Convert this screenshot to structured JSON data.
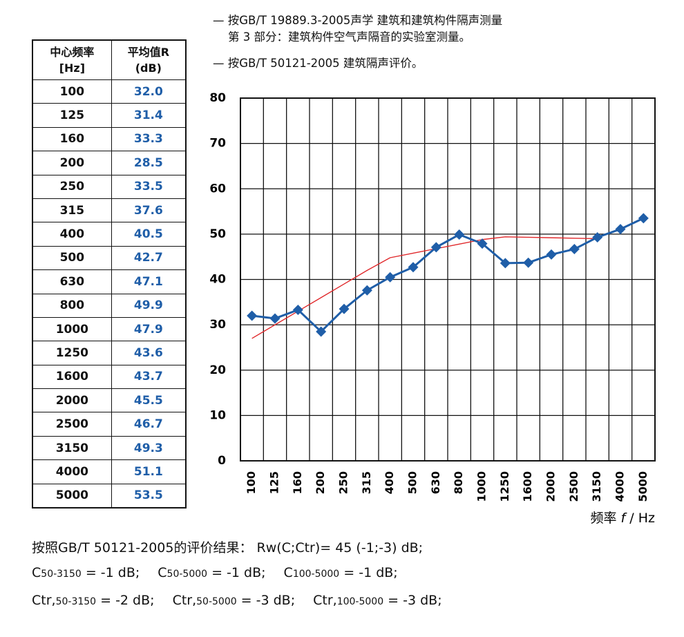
{
  "notes": [
    "— 按GB/T 19889.3-2005声学  建筑和建筑构件隔声测量",
    "第 3 部分：建筑构件空气声隔音的实验室测量。",
    "— 按GB/T 50121-2005  建筑隔声评价。"
  ],
  "table": {
    "header": [
      [
        "中心频率",
        "[Hz]"
      ],
      [
        "平均值R",
        "(dB)"
      ]
    ],
    "rows": [
      [
        "100",
        "32.0"
      ],
      [
        "125",
        "31.4"
      ],
      [
        "160",
        "33.3"
      ],
      [
        "200",
        "28.5"
      ],
      [
        "250",
        "33.5"
      ],
      [
        "315",
        "37.6"
      ],
      [
        "400",
        "40.5"
      ],
      [
        "500",
        "42.7"
      ],
      [
        "630",
        "47.1"
      ],
      [
        "800",
        "49.9"
      ],
      [
        "1000",
        "47.9"
      ],
      [
        "1250",
        "43.6"
      ],
      [
        "1600",
        "43.7"
      ],
      [
        "2000",
        "45.5"
      ],
      [
        "2500",
        "46.7"
      ],
      [
        "3150",
        "49.3"
      ],
      [
        "4000",
        "51.1"
      ],
      [
        "5000",
        "53.5"
      ]
    ]
  },
  "chart_data": {
    "type": "line",
    "categories": [
      "100",
      "125",
      "160",
      "200",
      "250",
      "315",
      "400",
      "500",
      "630",
      "800",
      "1000",
      "1250",
      "1600",
      "2000",
      "2500",
      "3150",
      "4000",
      "5000"
    ],
    "series": [
      {
        "color": "#1f5ea8",
        "marker": "diamond",
        "values": [
          32.0,
          31.4,
          33.3,
          28.5,
          33.5,
          37.6,
          40.5,
          42.7,
          47.1,
          49.9,
          47.9,
          43.6,
          43.7,
          45.5,
          46.7,
          49.3,
          51.1,
          53.5
        ]
      },
      {
        "color": "#e0282b",
        "values": [
          27,
          30,
          33,
          36,
          39,
          42,
          44.8,
          45.8,
          46.8,
          47.8,
          48.8,
          49.4,
          49.3,
          49.2,
          49.1,
          49.0,
          null,
          null
        ]
      }
    ],
    "ylim": [
      0,
      80
    ],
    "yticks": [
      0,
      10,
      20,
      30,
      40,
      50,
      60,
      70,
      80
    ],
    "grid": true,
    "x_label": [
      "频率 ",
      "f",
      " / Hz"
    ]
  },
  "results": [
    [
      {
        "text": "按照GB/T  50121-2005的评价结果：   Rw(C;Ctr)= 45 (-1;-3)  dB;"
      }
    ],
    [
      {
        "symbol": "C",
        "sub": "50-3150",
        "value": " = -1  dB;"
      },
      {
        "symbol": "C",
        "sub": "50-5000",
        "value": " = -1  dB;"
      },
      {
        "symbol": "C",
        "sub": "100-5000",
        "value": " = -1  dB;"
      }
    ],
    [
      {
        "symbol": "Ctr,",
        "sub": "50-3150",
        "value": " = -2  dB;"
      },
      {
        "symbol": "Ctr,",
        "sub": "50-5000",
        "value": " = -3  dB;"
      },
      {
        "symbol": "Ctr,",
        "sub": "100-5000",
        "value": " = -3  dB;"
      }
    ]
  ]
}
